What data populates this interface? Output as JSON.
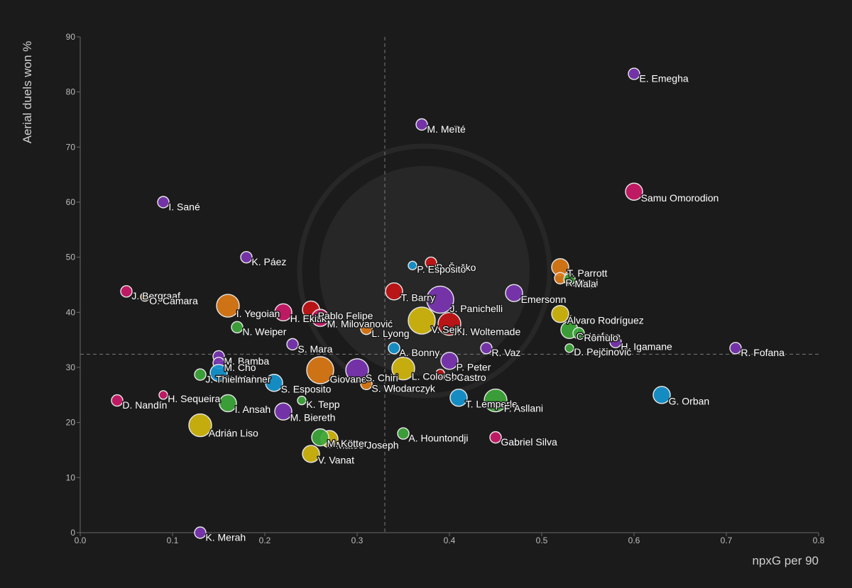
{
  "chart_data": {
    "type": "scatter",
    "title": "",
    "xlabel": "npxG per 90",
    "ylabel": "Aerial duels won %",
    "xlim": [
      0,
      0.8
    ],
    "ylim": [
      0,
      90
    ],
    "xticks": [
      0.0,
      0.1,
      0.2,
      0.3,
      0.4,
      0.5,
      0.6,
      0.7,
      0.8
    ],
    "xtick_labels": [
      "0.0",
      "0.1",
      "0.2",
      "0.3",
      "0.4",
      "0.5",
      "0.6",
      "0.7",
      "0.8"
    ],
    "yticks": [
      0,
      10,
      20,
      30,
      40,
      50,
      60,
      70,
      80,
      90
    ],
    "ytick_labels": [
      "0",
      "10",
      "20",
      "30",
      "40",
      "50",
      "60",
      "70",
      "80",
      "90"
    ],
    "mean_x": 0.33,
    "mean_y": 32.4,
    "colors": {
      "purple": "#7b35b3",
      "pink": "#cc1a6a",
      "orange": "#dd7a16",
      "green": "#3ea83a",
      "blue": "#1596cf",
      "yellow": "#d2b80e",
      "red": "#c41416"
    },
    "points": [
      {
        "name": "E. Emegha",
        "x": 0.6,
        "y": 83.3,
        "size": "s",
        "color": "purple"
      },
      {
        "name": "M. Meïté",
        "x": 0.37,
        "y": 74.1,
        "size": "s",
        "color": "purple"
      },
      {
        "name": "Samu Omorodion",
        "x": 0.6,
        "y": 61.9,
        "size": "m",
        "color": "pink"
      },
      {
        "name": "I. Sané",
        "x": 0.09,
        "y": 60.0,
        "size": "s",
        "color": "purple"
      },
      {
        "name": "K. Páez",
        "x": 0.18,
        "y": 50.0,
        "size": "s",
        "color": "purple"
      },
      {
        "name": "B. Šeško",
        "x": 0.38,
        "y": 49.0,
        "size": "s",
        "color": "red"
      },
      {
        "name": "P. Esposito",
        "x": 0.36,
        "y": 48.5,
        "size": "xs",
        "color": "blue"
      },
      {
        "name": "T. Parrott",
        "x": 0.52,
        "y": 48.2,
        "size": "m",
        "color": "orange"
      },
      {
        "name": "R. Pepi",
        "x": 0.52,
        "y": 46.2,
        "size": "s",
        "color": "orange"
      },
      {
        "name": "Mala",
        "x": 0.53,
        "y": 46.0,
        "size": "s",
        "color": "green"
      },
      {
        "name": "J. Bergraaf",
        "x": 0.05,
        "y": 43.8,
        "size": "s",
        "color": "pink"
      },
      {
        "name": "O. Camara",
        "x": 0.07,
        "y": 42.8,
        "size": "xs",
        "color": "orange"
      },
      {
        "name": "T. Barry",
        "x": 0.34,
        "y": 43.8,
        "size": "m",
        "color": "red"
      },
      {
        "name": "Emersonn",
        "x": 0.47,
        "y": 43.5,
        "size": "m",
        "color": "purple"
      },
      {
        "name": "J. Panichelli",
        "x": 0.39,
        "y": 42.3,
        "size": "xl",
        "color": "purple"
      },
      {
        "name": "I. Yegoian",
        "x": 0.16,
        "y": 41.2,
        "size": "l",
        "color": "orange"
      },
      {
        "name": "H. Ekitiké",
        "x": 0.22,
        "y": 40.0,
        "size": "m",
        "color": "pink"
      },
      {
        "name": "Pablo Felipe",
        "x": 0.25,
        "y": 40.5,
        "size": "m",
        "color": "red"
      },
      {
        "name": "M. Milovanović",
        "x": 0.26,
        "y": 39.0,
        "size": "m",
        "color": "pink"
      },
      {
        "name": "Álvaro Rodríguez",
        "x": 0.52,
        "y": 39.7,
        "size": "m",
        "color": "yellow"
      },
      {
        "name": "N. Woltemade",
        "x": 0.4,
        "y": 37.9,
        "size": "l",
        "color": "red"
      },
      {
        "name": "L. Lyong",
        "x": 0.31,
        "y": 37.0,
        "size": "s",
        "color": "orange"
      },
      {
        "name": "N. Weiper",
        "x": 0.17,
        "y": 37.3,
        "size": "s",
        "color": "green"
      },
      {
        "name": "C. Kofane",
        "x": 0.53,
        "y": 36.8,
        "size": "m",
        "color": "green"
      },
      {
        "name": "Rômulo",
        "x": 0.54,
        "y": 36.2,
        "size": "s",
        "color": "green"
      },
      {
        "name": "V. Sejk",
        "x": 0.37,
        "y": 38.5,
        "size": "xl",
        "color": "yellow"
      },
      {
        "name": "R. Vaz",
        "x": 0.44,
        "y": 33.5,
        "size": "s",
        "color": "purple"
      },
      {
        "name": "H. Igamane",
        "x": 0.58,
        "y": 34.6,
        "size": "s",
        "color": "purple"
      },
      {
        "name": "R. Fofana",
        "x": 0.71,
        "y": 33.5,
        "size": "s",
        "color": "purple"
      },
      {
        "name": "S. Mara",
        "x": 0.23,
        "y": 34.2,
        "size": "s",
        "color": "purple"
      },
      {
        "name": "A. Bonny",
        "x": 0.34,
        "y": 33.5,
        "size": "s",
        "color": "blue"
      },
      {
        "name": "D. Pejčinović",
        "x": 0.53,
        "y": 33.5,
        "size": "xs",
        "color": "green"
      },
      {
        "name": "P. Peter",
        "x": 0.4,
        "y": 31.2,
        "size": "m",
        "color": "purple"
      },
      {
        "name": "M. Bamba",
        "x": 0.15,
        "y": 32.0,
        "size": "s",
        "color": "purple"
      },
      {
        "name": "M. Cho",
        "x": 0.15,
        "y": 30.8,
        "size": "s",
        "color": "purple"
      },
      {
        "name": "Giovane",
        "x": 0.26,
        "y": 29.5,
        "size": "xl",
        "color": "orange"
      },
      {
        "name": "S. Chiri",
        "x": 0.3,
        "y": 29.5,
        "size": "l",
        "color": "purple"
      },
      {
        "name": "L. Colombo",
        "x": 0.35,
        "y": 29.8,
        "size": "l",
        "color": "yellow"
      },
      {
        "name": "H. Meister",
        "x": 0.15,
        "y": 29.0,
        "size": "m",
        "color": "blue"
      },
      {
        "name": "S. Esposito",
        "x": 0.21,
        "y": 27.2,
        "size": "m",
        "color": "blue"
      },
      {
        "name": "S. Castro",
        "x": 0.39,
        "y": 28.9,
        "size": "xs",
        "color": "red"
      },
      {
        "name": "S. Włodarczyk",
        "x": 0.31,
        "y": 27.0,
        "size": "s",
        "color": "orange"
      },
      {
        "name": "J. Thielmann",
        "x": 0.13,
        "y": 28.7,
        "size": "s",
        "color": "green"
      },
      {
        "name": "H. Sequeira",
        "x": 0.09,
        "y": 25.0,
        "size": "xs",
        "color": "pink"
      },
      {
        "name": "D. Nandín",
        "x": 0.04,
        "y": 24.0,
        "size": "s",
        "color": "pink"
      },
      {
        "name": "T. Lemperle",
        "x": 0.41,
        "y": 24.5,
        "size": "m",
        "color": "blue"
      },
      {
        "name": "F. Asllani",
        "x": 0.45,
        "y": 24.0,
        "size": "l",
        "color": "green"
      },
      {
        "name": "G. Orban",
        "x": 0.63,
        "y": 25.0,
        "size": "m",
        "color": "blue"
      },
      {
        "name": "I. Ansah",
        "x": 0.16,
        "y": 23.5,
        "size": "m",
        "color": "green"
      },
      {
        "name": "K. Tepp",
        "x": 0.24,
        "y": 24.0,
        "size": "xs",
        "color": "green"
      },
      {
        "name": "M. Biereth",
        "x": 0.22,
        "y": 22.0,
        "size": "m",
        "color": "purple"
      },
      {
        "name": "Adrián Liso",
        "x": 0.13,
        "y": 19.5,
        "size": "l",
        "color": "yellow"
      },
      {
        "name": "A. Hountondji",
        "x": 0.35,
        "y": 18.0,
        "size": "s",
        "color": "green"
      },
      {
        "name": "Mateo Joseph",
        "x": 0.27,
        "y": 17.0,
        "size": "m",
        "color": "yellow"
      },
      {
        "name": "M. Kötter",
        "x": 0.26,
        "y": 17.3,
        "size": "m",
        "color": "green"
      },
      {
        "name": "Gabriel Silva",
        "x": 0.45,
        "y": 17.3,
        "size": "s",
        "color": "pink"
      },
      {
        "name": "V. Vanat",
        "x": 0.25,
        "y": 14.3,
        "size": "m",
        "color": "yellow"
      },
      {
        "name": "K. Merah",
        "x": 0.13,
        "y": 0.0,
        "size": "s",
        "color": "purple"
      }
    ]
  }
}
